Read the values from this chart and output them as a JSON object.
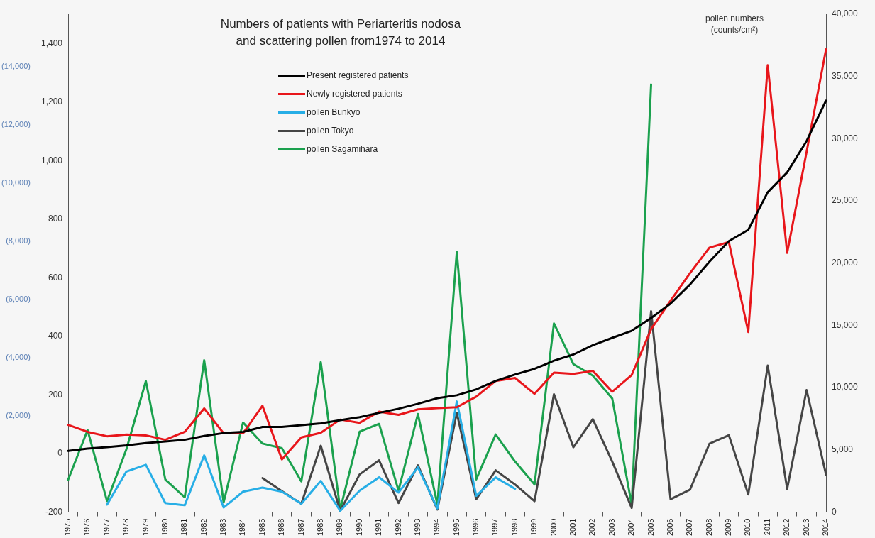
{
  "chart_data": {
    "type": "line",
    "title": "Numbers of patients with Periarteritis nodosa\nand scattering pollen from1974 to 2014",
    "y2label": "pollen numbers\n(counts/cm²)",
    "categories": [
      "1975",
      "1976",
      "1977",
      "1978",
      "1979",
      "1980",
      "1981",
      "1982",
      "1983",
      "1984",
      "1985",
      "1986",
      "1987",
      "1988",
      "1989",
      "1990",
      "1991",
      "1992",
      "1993",
      "1994",
      "1995",
      "1996",
      "1997",
      "1998",
      "1999",
      "2000",
      "2001",
      "2002",
      "2003",
      "2004",
      "2005",
      "2006",
      "2007",
      "2008",
      "2009",
      "2010",
      "2011",
      "2012",
      "2013",
      "2014"
    ],
    "series": [
      {
        "name": "Present registered patients",
        "color": "#000000",
        "values": [
          9,
          17,
          22,
          28,
          36,
          41,
          47,
          60,
          70,
          74,
          91,
          91,
          97,
          103,
          114,
          124,
          139,
          153,
          170,
          189,
          199,
          219,
          248,
          270,
          289,
          317,
          338,
          370,
          395,
          419,
          463,
          512,
          577,
          655,
          725,
          764,
          892,
          960,
          1067,
          1205
        ]
      },
      {
        "name": "Newly registered patients",
        "color": "#e8161b",
        "values": [
          98,
          74,
          59,
          65,
          62,
          47,
          74,
          154,
          69,
          69,
          163,
          -20,
          55,
          71,
          116,
          105,
          143,
          132,
          151,
          155,
          158,
          194,
          248,
          258,
          204,
          276,
          272,
          282,
          211,
          268,
          425,
          522,
          616,
          703,
          722,
          415,
          1326,
          685,
          1030,
          1380
        ]
      },
      {
        "name": "pollen Bunkyo",
        "color": "#27aee6",
        "axis": "y2",
        "values": [
          null,
          null,
          600,
          3260,
          3800,
          730,
          550,
          4560,
          370,
          1640,
          1970,
          1640,
          670,
          2510,
          100,
          1730,
          2800,
          1570,
          3600,
          300,
          8890,
          1310,
          2790,
          1870,
          null,
          null,
          null,
          null,
          null,
          null,
          null,
          null,
          null,
          null,
          null,
          null,
          null,
          null,
          null,
          null
        ]
      },
      {
        "name": "pollen Tokyo",
        "color": "#454545",
        "axis": "y2",
        "values": [
          null,
          null,
          null,
          null,
          null,
          null,
          null,
          null,
          null,
          null,
          2740,
          1680,
          670,
          5330,
          100,
          3030,
          4160,
          730,
          3760,
          210,
          7980,
          1030,
          3360,
          2220,
          880,
          9470,
          5210,
          7460,
          4060,
          340,
          16140,
          1030,
          1800,
          5490,
          6180,
          1420,
          11770,
          1870,
          9810,
          3020
        ]
      },
      {
        "name": "pollen Sagamihara",
        "color": "#1ba14e",
        "axis": "y2",
        "values": [
          2600,
          6590,
          890,
          5060,
          10520,
          2620,
          1190,
          12210,
          780,
          7200,
          5510,
          5130,
          2470,
          12050,
          210,
          6460,
          7090,
          1730,
          7880,
          600,
          20900,
          2630,
          6240,
          4060,
          2220,
          15160,
          11890,
          10960,
          9120,
          600,
          34360,
          null,
          null,
          null,
          null,
          null,
          null,
          null,
          null,
          null
        ]
      }
    ],
    "ylim": [
      -200,
      1500
    ],
    "yticks": [
      -200,
      0,
      200,
      400,
      600,
      800,
      {
        "value": 1000,
        "label": "1,000"
      },
      {
        "value": 1200,
        "label": "1,200"
      },
      {
        "value": 1400,
        "label": "1,400"
      }
    ],
    "y3lim": [
      -1300,
      15800
    ],
    "y3ticks": [
      {
        "value": 2000,
        "label": "(2,000)"
      },
      {
        "value": 4000,
        "label": "(4,000)"
      },
      {
        "value": 6000,
        "label": "(6,000)"
      },
      {
        "value": 8000,
        "label": "(8,000)"
      },
      {
        "value": 10000,
        "label": "(10,000)"
      },
      {
        "value": 12000,
        "label": "(12,000)"
      },
      {
        "value": 14000,
        "label": "(14,000)"
      }
    ],
    "y2lim": [
      0,
      40000
    ],
    "y2ticks": [
      0,
      {
        "value": 5000,
        "label": "5,000"
      },
      {
        "value": 10000,
        "label": "10,000"
      },
      {
        "value": 15000,
        "label": "15,000"
      },
      {
        "value": 20000,
        "label": "20,000"
      },
      {
        "value": 25000,
        "label": "25,000"
      },
      {
        "value": 30000,
        "label": "30,000"
      },
      {
        "value": 35000,
        "label": "35,000"
      },
      {
        "value": 40000,
        "label": "40,000"
      }
    ],
    "legend": "top",
    "marker": "none",
    "line_style": "solid"
  }
}
